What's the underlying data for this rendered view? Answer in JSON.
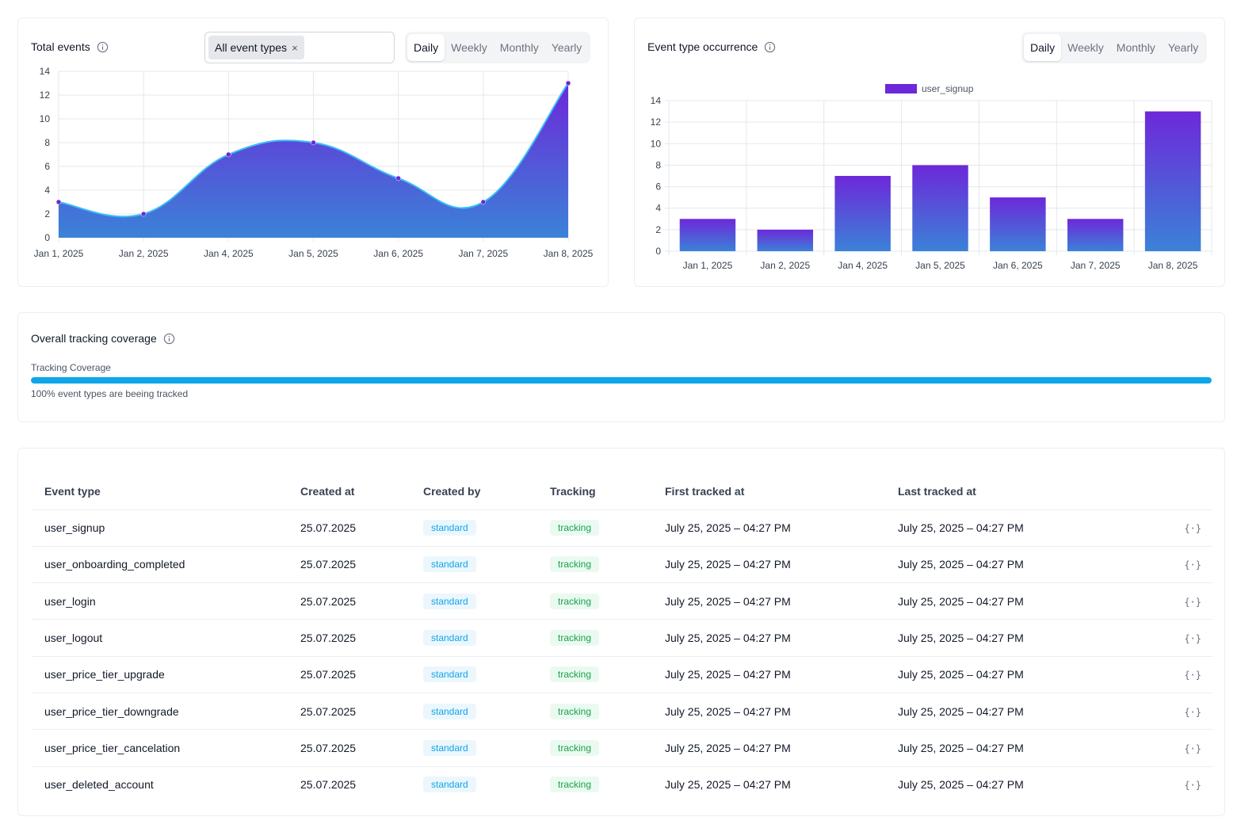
{
  "total_events": {
    "title": "Total events",
    "filter_chip": "All event types",
    "filter_chip_remove": "×",
    "periods": [
      "Daily",
      "Weekly",
      "Monthly",
      "Yearly"
    ],
    "active_period": "Daily"
  },
  "occurrence": {
    "title": "Event type occurrence",
    "periods": [
      "Daily",
      "Weekly",
      "Monthly",
      "Yearly"
    ],
    "active_period": "Daily"
  },
  "coverage": {
    "title": "Overall tracking coverage",
    "bar_label": "Tracking Coverage",
    "percent": 100,
    "note": "100% event types are beeing tracked",
    "bar_color": "#0ea5e9"
  },
  "colors": {
    "gradient_top": "#6d28d9",
    "gradient_bottom": "#3b82d8",
    "line": "#38bdf8",
    "point": "#6d28d9"
  },
  "chart_data": [
    {
      "type": "area",
      "categories": [
        "Jan 1, 2025",
        "Jan 2, 2025",
        "Jan 4, 2025",
        "Jan 5, 2025",
        "Jan 6, 2025",
        "Jan 7, 2025",
        "Jan 8, 2025"
      ],
      "values": [
        3,
        2,
        7,
        8,
        5,
        3,
        13
      ],
      "ylim": [
        0,
        14
      ],
      "yticks": [
        0,
        2,
        4,
        6,
        8,
        10,
        12,
        14
      ],
      "grid": true
    },
    {
      "type": "bar",
      "categories": [
        "Jan 1, 2025",
        "Jan 2, 2025",
        "Jan 4, 2025",
        "Jan 5, 2025",
        "Jan 6, 2025",
        "Jan 7, 2025",
        "Jan 8, 2025"
      ],
      "series": [
        {
          "name": "user_signup",
          "values": [
            3,
            2,
            7,
            8,
            5,
            3,
            13
          ]
        }
      ],
      "ylim": [
        0,
        14
      ],
      "yticks": [
        0,
        2,
        4,
        6,
        8,
        10,
        12,
        14
      ],
      "legend": "top-center",
      "grid": true
    }
  ],
  "table": {
    "headers": [
      "Event type",
      "Created at",
      "Created by",
      "Tracking",
      "First tracked at",
      "Last tracked at"
    ],
    "rows": [
      {
        "event": "user_signup",
        "created_at": "25.07.2025",
        "created_by": "standard",
        "tracking": "tracking",
        "first": "July 25, 2025 – 04:27 PM",
        "last": "July 25, 2025 – 04:27 PM"
      },
      {
        "event": "user_onboarding_completed",
        "created_at": "25.07.2025",
        "created_by": "standard",
        "tracking": "tracking",
        "first": "July 25, 2025 – 04:27 PM",
        "last": "July 25, 2025 – 04:27 PM"
      },
      {
        "event": "user_login",
        "created_at": "25.07.2025",
        "created_by": "standard",
        "tracking": "tracking",
        "first": "July 25, 2025 – 04:27 PM",
        "last": "July 25, 2025 – 04:27 PM"
      },
      {
        "event": "user_logout",
        "created_at": "25.07.2025",
        "created_by": "standard",
        "tracking": "tracking",
        "first": "July 25, 2025 – 04:27 PM",
        "last": "July 25, 2025 – 04:27 PM"
      },
      {
        "event": "user_price_tier_upgrade",
        "created_at": "25.07.2025",
        "created_by": "standard",
        "tracking": "tracking",
        "first": "July 25, 2025 – 04:27 PM",
        "last": "July 25, 2025 – 04:27 PM"
      },
      {
        "event": "user_price_tier_downgrade",
        "created_at": "25.07.2025",
        "created_by": "standard",
        "tracking": "tracking",
        "first": "July 25, 2025 – 04:27 PM",
        "last": "July 25, 2025 – 04:27 PM"
      },
      {
        "event": "user_price_tier_cancelation",
        "created_at": "25.07.2025",
        "created_by": "standard",
        "tracking": "tracking",
        "first": "July 25, 2025 – 04:27 PM",
        "last": "July 25, 2025 – 04:27 PM"
      },
      {
        "event": "user_deleted_account",
        "created_at": "25.07.2025",
        "created_by": "standard",
        "tracking": "tracking",
        "first": "July 25, 2025 – 04:27 PM",
        "last": "July 25, 2025 – 04:27 PM"
      }
    ],
    "row_action_icon": "code-braces-icon"
  }
}
